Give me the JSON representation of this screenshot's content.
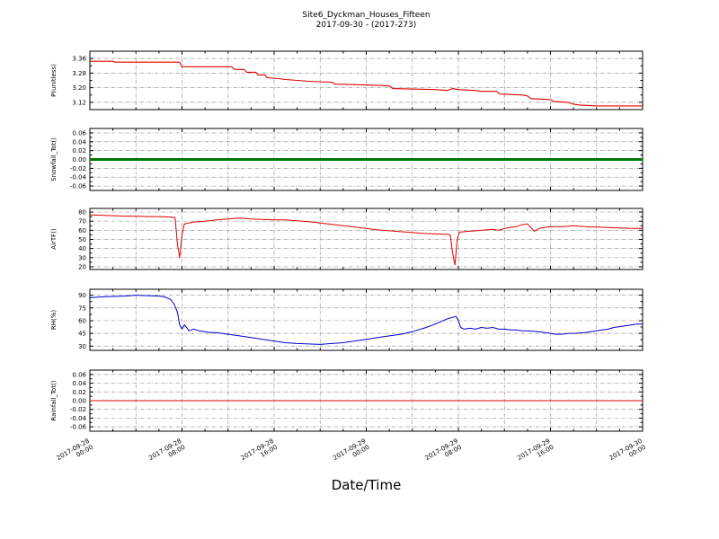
{
  "header": {
    "title": "Site6_Dyckman_Houses_Fifteen",
    "subtitle": "2017-09-30 - (2017-273)"
  },
  "chart_meta": {
    "xlabel": "Date/Time",
    "xlim": [
      0,
      48
    ],
    "grid_step_h": 4,
    "tick_step_h": 2,
    "label_step_h": 8,
    "x_tick_values": [
      0,
      8,
      16,
      24,
      32,
      40,
      48
    ],
    "x_tick_labels": [
      "2017-09-28 00:00",
      "2017-09-28 08:00",
      "2017-09-28 16:00",
      "2017-09-29 00:00",
      "2017-09-29 08:00",
      "2017-09-29 16:00",
      "2017-09-30 00:00"
    ]
  },
  "chart_data": [
    {
      "type": "line",
      "ylabel": "P(unitless)",
      "color": "#dd0000",
      "width": 1.1,
      "ylim": [
        3.08,
        3.4
      ],
      "yticks": [
        3.12,
        3.2,
        3.28,
        3.36
      ],
      "ydecimals": 2,
      "x": [
        0,
        2,
        2.2,
        5,
        7.8,
        8,
        12.3,
        12.6,
        13.4,
        13.6,
        14.4,
        14.6,
        15.2,
        15.4,
        16.4,
        17,
        18,
        19,
        21,
        21.3,
        24,
        26,
        26.3,
        30,
        31,
        31.5,
        32,
        33.5,
        34,
        35.3,
        35.6,
        37.5,
        38,
        38.3,
        40,
        40.3,
        41.5,
        42,
        42.5,
        44,
        48
      ],
      "y": [
        3.345,
        3.345,
        3.34,
        3.34,
        3.34,
        3.315,
        3.315,
        3.3,
        3.3,
        3.285,
        3.285,
        3.27,
        3.27,
        3.255,
        3.25,
        3.245,
        3.24,
        3.235,
        3.23,
        3.22,
        3.215,
        3.21,
        3.195,
        3.19,
        3.185,
        3.195,
        3.19,
        3.185,
        3.18,
        3.18,
        3.165,
        3.16,
        3.155,
        3.14,
        3.135,
        3.125,
        3.12,
        3.11,
        3.105,
        3.1,
        3.1
      ]
    },
    {
      "type": "line",
      "ylabel": "Snowfall_Tot()",
      "color": "#007700",
      "width": 3,
      "ylim": [
        -0.07,
        0.07
      ],
      "yticks": [
        -0.06,
        -0.04,
        -0.02,
        0.0,
        0.02,
        0.04,
        0.06
      ],
      "ydecimals": 2,
      "x": [
        0,
        48
      ],
      "y": [
        0.0,
        0.0
      ]
    },
    {
      "type": "line",
      "ylabel": "AirTF()",
      "color": "#dd0000",
      "width": 1,
      "ylim": [
        17,
        84
      ],
      "yticks": [
        20,
        30,
        40,
        50,
        60,
        70,
        80
      ],
      "ydecimals": 0,
      "x": [
        0,
        1,
        2,
        3,
        4,
        5,
        6,
        7,
        7.4,
        7.6,
        7.8,
        8,
        8.2,
        9,
        10,
        11,
        12,
        13,
        13.5,
        14,
        15,
        16,
        17,
        18,
        19,
        20,
        21,
        22,
        23,
        24,
        25,
        26,
        27,
        28,
        29,
        30,
        31,
        31.3,
        31.5,
        31.7,
        31.9,
        32.1,
        33,
        34,
        35,
        35.5,
        36,
        36.5,
        37,
        37.5,
        38,
        38.3,
        38.6,
        39,
        39.5,
        40,
        41,
        42,
        43,
        44,
        45,
        46,
        47,
        48
      ],
      "y": [
        77,
        76.5,
        76,
        75.5,
        75.5,
        75,
        75,
        74.5,
        74,
        45,
        30,
        55,
        67,
        69,
        70,
        71.5,
        72.5,
        73.5,
        73,
        72.5,
        72,
        71.5,
        71.5,
        70.5,
        69.5,
        68,
        66.5,
        65,
        63.5,
        62,
        60.5,
        59.5,
        58.5,
        57.5,
        56.5,
        56,
        55.5,
        55,
        35,
        22,
        50,
        58,
        59,
        60,
        61,
        60,
        62,
        63,
        64,
        66,
        67,
        63,
        59,
        62,
        63,
        64,
        64,
        65,
        64,
        63.5,
        63,
        62.5,
        62,
        62
      ]
    },
    {
      "type": "line",
      "ylabel": "RH(%)",
      "color": "#0000cc",
      "width": 1,
      "ylim": [
        25,
        97
      ],
      "yticks": [
        30,
        45,
        60,
        75,
        90
      ],
      "ydecimals": 0,
      "x": [
        0,
        1,
        2,
        3,
        4,
        5,
        6,
        6.5,
        7,
        7.3,
        7.6,
        7.8,
        8,
        8.2,
        8.4,
        8.6,
        9,
        9.5,
        10,
        10.5,
        11,
        12,
        13,
        14,
        15,
        16,
        17,
        18,
        19,
        20,
        21,
        22,
        23,
        24,
        24.5,
        25,
        26,
        27,
        28,
        29,
        30,
        30.5,
        31,
        31.5,
        31.8,
        32,
        32.2,
        32.5,
        33,
        33.5,
        34,
        34.5,
        35,
        35.5,
        36,
        36.5,
        37,
        37.5,
        38,
        39,
        40,
        40.5,
        41,
        41.5,
        42,
        43,
        44,
        45,
        45.5,
        46,
        46.5,
        47,
        47.5,
        48
      ],
      "y": [
        87,
        88,
        88.5,
        89,
        90,
        89.5,
        89,
        88,
        85,
        80,
        70,
        55,
        50,
        55,
        52,
        48,
        50,
        48,
        47,
        46,
        46,
        44,
        42,
        40,
        38,
        36,
        34,
        33,
        32.5,
        32,
        33,
        34,
        36,
        38,
        39,
        40,
        42,
        44,
        47,
        51,
        56,
        59,
        62,
        64,
        65,
        60,
        52,
        50,
        51,
        50,
        52,
        51,
        52,
        50,
        50,
        49,
        49,
        48,
        48,
        47,
        45,
        44,
        44,
        45,
        45,
        46,
        48,
        50,
        52,
        53,
        54,
        55,
        56,
        56
      ]
    },
    {
      "type": "line",
      "ylabel": "Rainfall_Tot()",
      "color": "#dd0000",
      "width": 1,
      "ylim": [
        -0.07,
        0.07
      ],
      "yticks": [
        -0.06,
        -0.04,
        -0.02,
        0.0,
        0.02,
        0.04,
        0.06
      ],
      "ydecimals": 2,
      "x": [
        0,
        48
      ],
      "y": [
        0.0,
        0.0
      ]
    }
  ]
}
